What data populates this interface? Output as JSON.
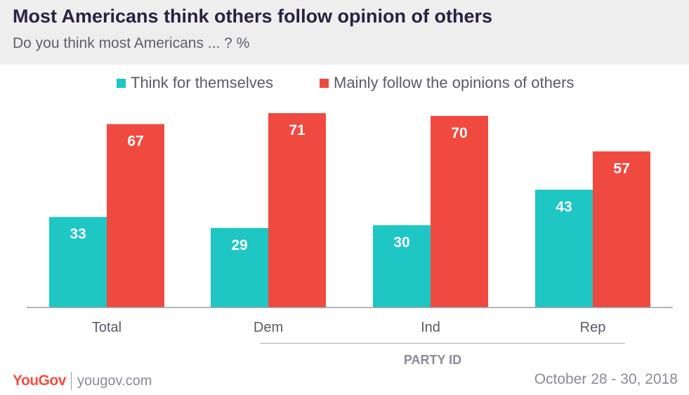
{
  "header": {
    "title": "Most Americans think others follow opinion of others",
    "subtitle": "Do you think most Americans ... ? %"
  },
  "colors": {
    "header_bg": "#eeeeef",
    "series1": "#1ec6c4",
    "series2": "#f0493f",
    "axis": "#9a9aa4",
    "brand": "#f0503f"
  },
  "chart_data": {
    "type": "bar",
    "categories": [
      "Total",
      "Dem",
      "Ind",
      "Rep"
    ],
    "series": [
      {
        "name": "Think for themselves",
        "values": [
          33,
          29,
          30,
          43
        ]
      },
      {
        "name": "Mainly follow the opinions of others",
        "values": [
          67,
          71,
          70,
          57
        ]
      }
    ],
    "ylim": [
      0,
      71
    ],
    "grid": false,
    "legend_position": "top",
    "data_labels": true,
    "group_label": "PARTY ID",
    "group_label_categories": [
      "Dem",
      "Ind",
      "Rep"
    ]
  },
  "footer": {
    "logo": "YouGov",
    "site": "yougov.com",
    "date": "October 28 - 30, 2018"
  }
}
